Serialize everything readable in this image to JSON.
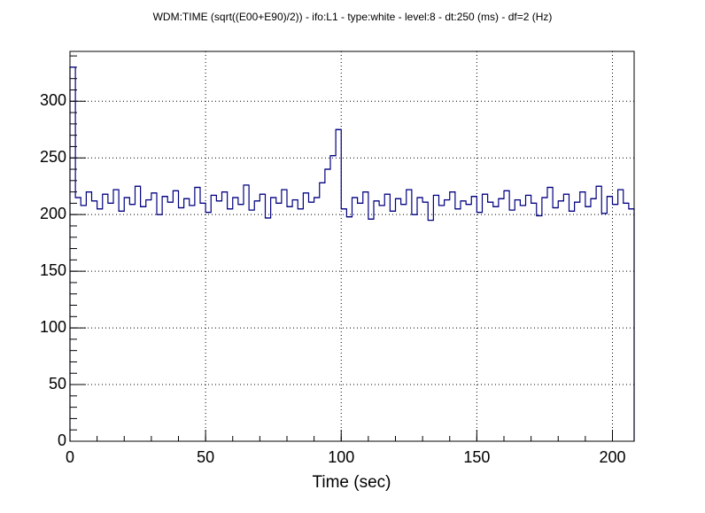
{
  "chart_data": {
    "type": "histogram",
    "title": "WDM:TIME (sqrt((E00+E90)/2)) - ifo:L1 - type:white - level:8 - dt:250 (ms) - df=2 (Hz)",
    "x_label": "Time (sec)",
    "color": "#000080",
    "grid": true,
    "xlim": [
      0,
      208
    ],
    "xticks": [
      0,
      50,
      100,
      150,
      200
    ],
    "ylim": [
      0,
      344
    ],
    "yticks": [
      0,
      50,
      100,
      150,
      200,
      250,
      300
    ],
    "bins": [
      0,
      2,
      4,
      6,
      8,
      10,
      12,
      14,
      16,
      18,
      20,
      22,
      24,
      26,
      28,
      30,
      32,
      34,
      36,
      38,
      40,
      42,
      44,
      46,
      48,
      50,
      52,
      54,
      56,
      58,
      60,
      62,
      64,
      66,
      68,
      70,
      72,
      74,
      76,
      78,
      80,
      82,
      84,
      86,
      88,
      90,
      92,
      94,
      96,
      98,
      100,
      102,
      104,
      106,
      108,
      110,
      112,
      114,
      116,
      118,
      120,
      122,
      124,
      126,
      128,
      130,
      132,
      134,
      136,
      138,
      140,
      142,
      144,
      146,
      148,
      150,
      152,
      154,
      156,
      158,
      160,
      162,
      164,
      166,
      168,
      170,
      172,
      174,
      176,
      178,
      180,
      182,
      184,
      186,
      188,
      190,
      192,
      194,
      196,
      198,
      200,
      202,
      204,
      206,
      208
    ],
    "values": [
      330,
      215,
      208,
      220,
      212,
      205,
      218,
      210,
      222,
      203,
      215,
      209,
      225,
      207,
      213,
      219,
      200,
      216,
      211,
      221,
      206,
      214,
      208,
      224,
      210,
      202,
      217,
      212,
      220,
      205,
      215,
      209,
      226,
      204,
      212,
      218,
      197,
      215,
      210,
      222,
      207,
      213,
      205,
      219,
      211,
      215,
      228,
      240,
      252,
      275,
      205,
      198,
      215,
      210,
      220,
      196,
      212,
      208,
      218,
      203,
      214,
      209,
      222,
      200,
      215,
      211,
      195,
      217,
      208,
      213,
      220,
      205,
      212,
      209,
      216,
      202,
      218,
      211,
      207,
      214,
      221,
      204,
      213,
      208,
      217,
      210,
      199,
      215,
      224,
      206,
      212,
      218,
      203,
      211,
      220,
      207,
      214,
      225,
      201,
      216,
      209,
      222,
      210,
      205
    ]
  }
}
